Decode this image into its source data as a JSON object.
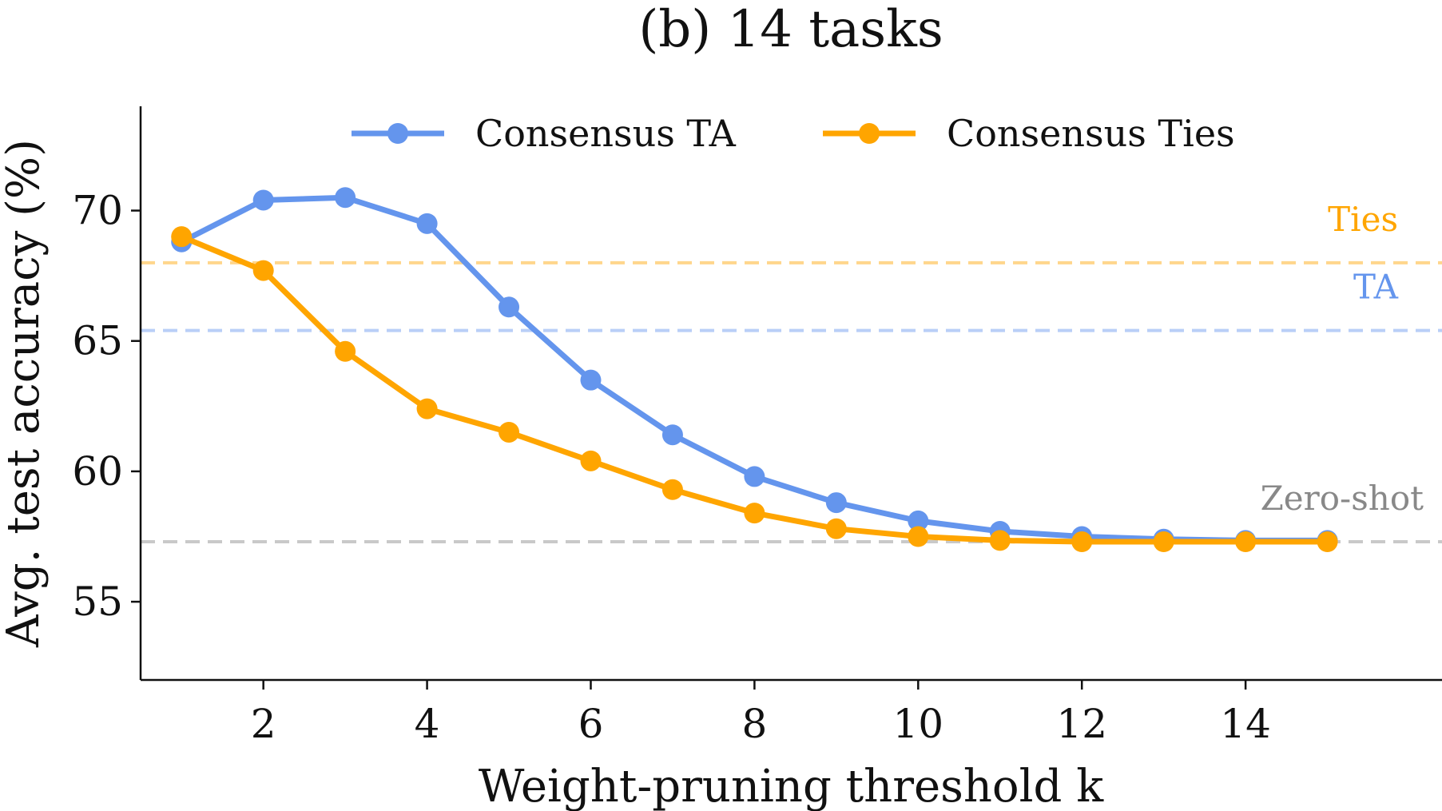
{
  "chart_data": {
    "type": "line",
    "title": "(b) 14 tasks",
    "xlabel": "Weight-pruning threshold k",
    "ylabel": "Avg. test accuracy (%)",
    "xlim": [
      0.5,
      16.4
    ],
    "ylim": [
      52.0,
      74.0
    ],
    "xticks": [
      2,
      4,
      6,
      8,
      10,
      12,
      14
    ],
    "yticks": [
      55,
      60,
      65,
      70
    ],
    "x": [
      1,
      2,
      3,
      4,
      5,
      6,
      7,
      8,
      9,
      10,
      11,
      12,
      13,
      14,
      15
    ],
    "series": [
      {
        "name": "Consensus TA",
        "color": "#6495ed",
        "values": [
          68.8,
          70.4,
          70.5,
          69.5,
          66.3,
          63.5,
          61.4,
          59.8,
          58.8,
          58.1,
          57.7,
          57.5,
          57.4,
          57.35,
          57.35
        ]
      },
      {
        "name": "Consensus Ties",
        "color": "#ffa500",
        "values": [
          69.0,
          67.7,
          64.6,
          62.4,
          61.5,
          60.4,
          59.3,
          58.4,
          57.8,
          57.5,
          57.35,
          57.3,
          57.3,
          57.3,
          57.3
        ]
      }
    ],
    "reference_lines": [
      {
        "label": "Ties",
        "value": 68.0,
        "color": "#ffa500"
      },
      {
        "label": "TA",
        "value": 65.4,
        "color": "#6495ed"
      },
      {
        "label": "Zero-shot",
        "value": 57.3,
        "color": "#888888"
      }
    ],
    "legend": "top-center",
    "grid": false
  }
}
